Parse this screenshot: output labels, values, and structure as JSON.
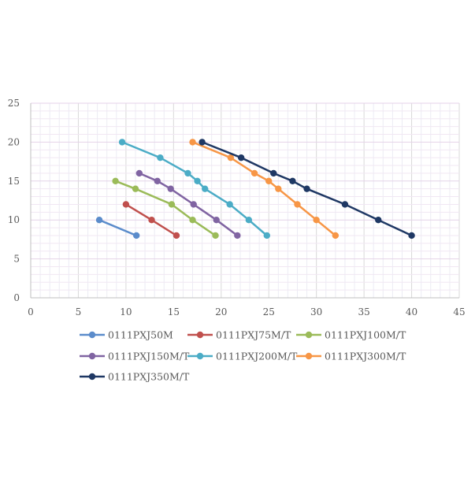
{
  "chart_data": {
    "type": "scatter",
    "xlim": [
      0,
      45
    ],
    "ylim": [
      0,
      25
    ],
    "x_ticks": [
      "0",
      "5",
      "10",
      "15",
      "20",
      "25",
      "30",
      "35",
      "40",
      "45"
    ],
    "y_ticks": [
      "0",
      "5",
      "10",
      "15",
      "20",
      "25"
    ],
    "grid": true,
    "legend_position": "bottom",
    "series": [
      {
        "name": "0111PXJ50M",
        "color": "#5b8ccb",
        "points": [
          [
            7.2,
            10
          ],
          [
            11.1,
            8
          ]
        ]
      },
      {
        "name": "0111PXJ75M/T",
        "color": "#c0504d",
        "points": [
          [
            10,
            12
          ],
          [
            12.7,
            10
          ],
          [
            15.3,
            8
          ]
        ]
      },
      {
        "name": "0111PXJ100M/T",
        "color": "#9bbb59",
        "points": [
          [
            8.9,
            15
          ],
          [
            11,
            14
          ],
          [
            14.8,
            12
          ],
          [
            17,
            10
          ],
          [
            19.4,
            8
          ]
        ]
      },
      {
        "name": "0111PXJ150M/T",
        "color": "#8064a2",
        "points": [
          [
            11.4,
            16
          ],
          [
            13.3,
            15
          ],
          [
            14.7,
            14
          ],
          [
            17.1,
            12
          ],
          [
            19.5,
            10
          ],
          [
            21.7,
            8
          ]
        ]
      },
      {
        "name": "0111PXJ200M/T",
        "color": "#4bacc6",
        "points": [
          [
            9.6,
            20
          ],
          [
            13.6,
            18
          ],
          [
            16.5,
            16
          ],
          [
            17.5,
            15
          ],
          [
            18.3,
            14
          ],
          [
            20.9,
            12
          ],
          [
            22.9,
            10
          ],
          [
            24.8,
            8
          ]
        ]
      },
      {
        "name": "0111PXJ300M/T",
        "color": "#f79646",
        "points": [
          [
            17,
            20
          ],
          [
            21,
            18
          ],
          [
            23.5,
            16
          ],
          [
            25,
            15
          ],
          [
            26,
            14
          ],
          [
            28,
            12
          ],
          [
            30,
            10
          ],
          [
            32,
            8
          ]
        ]
      },
      {
        "name": "0111PXJ350M/T",
        "color": "#1f3864",
        "points": [
          [
            18,
            20
          ],
          [
            22.1,
            18
          ],
          [
            25.5,
            16
          ],
          [
            27.5,
            15
          ],
          [
            29,
            14
          ],
          [
            33,
            12
          ],
          [
            36.5,
            10
          ],
          [
            40,
            8
          ]
        ]
      }
    ]
  }
}
